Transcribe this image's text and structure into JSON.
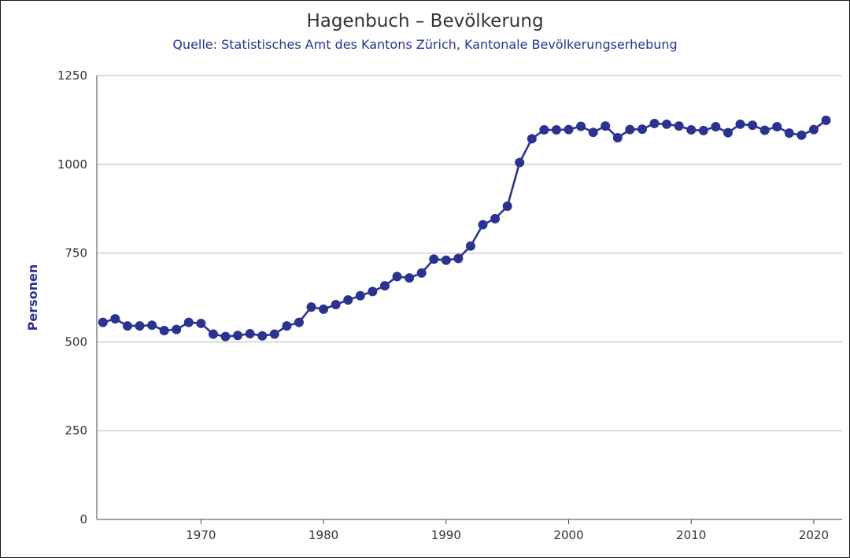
{
  "colors": {
    "series": "#2b3390",
    "title": "#333333",
    "subtitle": "#2b3390",
    "grid": "#b8b8b8"
  },
  "chart_data": {
    "type": "line",
    "title": "Hagenbuch – Bevölkerung",
    "subtitle": "Quelle: Statistisches Amt des Kantons Zürich, Kantonale Bevölkerungserhebung",
    "xlabel": "",
    "ylabel": "Personen",
    "xlim": [
      1961.5,
      2021.8
    ],
    "ylim": [
      0,
      1250
    ],
    "yticks": [
      0,
      250,
      500,
      750,
      1000,
      1250
    ],
    "xticks": [
      1970,
      1980,
      1990,
      2000,
      2010,
      2020
    ],
    "grid": true,
    "legend": "none",
    "x": [
      1962,
      1963,
      1964,
      1965,
      1966,
      1967,
      1968,
      1969,
      1970,
      1971,
      1972,
      1973,
      1974,
      1975,
      1976,
      1977,
      1978,
      1979,
      1980,
      1981,
      1982,
      1983,
      1984,
      1985,
      1986,
      1987,
      1988,
      1989,
      1990,
      1991,
      1992,
      1993,
      1994,
      1995,
      1996,
      1997,
      1998,
      1999,
      2000,
      2001,
      2002,
      2003,
      2004,
      2005,
      2006,
      2007,
      2008,
      2009,
      2010,
      2011,
      2012,
      2013,
      2014,
      2015,
      2016,
      2017,
      2018,
      2019,
      2020,
      2021
    ],
    "series": [
      {
        "values": [
          555,
          565,
          545,
          545,
          547,
          532,
          535,
          555,
          552,
          522,
          515,
          518,
          523,
          517,
          522,
          545,
          555,
          598,
          592,
          605,
          618,
          630,
          642,
          658,
          684,
          680,
          694,
          733,
          730,
          735,
          770,
          830,
          847,
          882,
          1005,
          1072,
          1097,
          1097,
          1098,
          1107,
          1090,
          1108,
          1075,
          1098,
          1099,
          1115,
          1113,
          1108,
          1097,
          1095,
          1106,
          1089,
          1113,
          1110,
          1096,
          1106,
          1088,
          1082,
          1098,
          1124
        ]
      }
    ]
  }
}
